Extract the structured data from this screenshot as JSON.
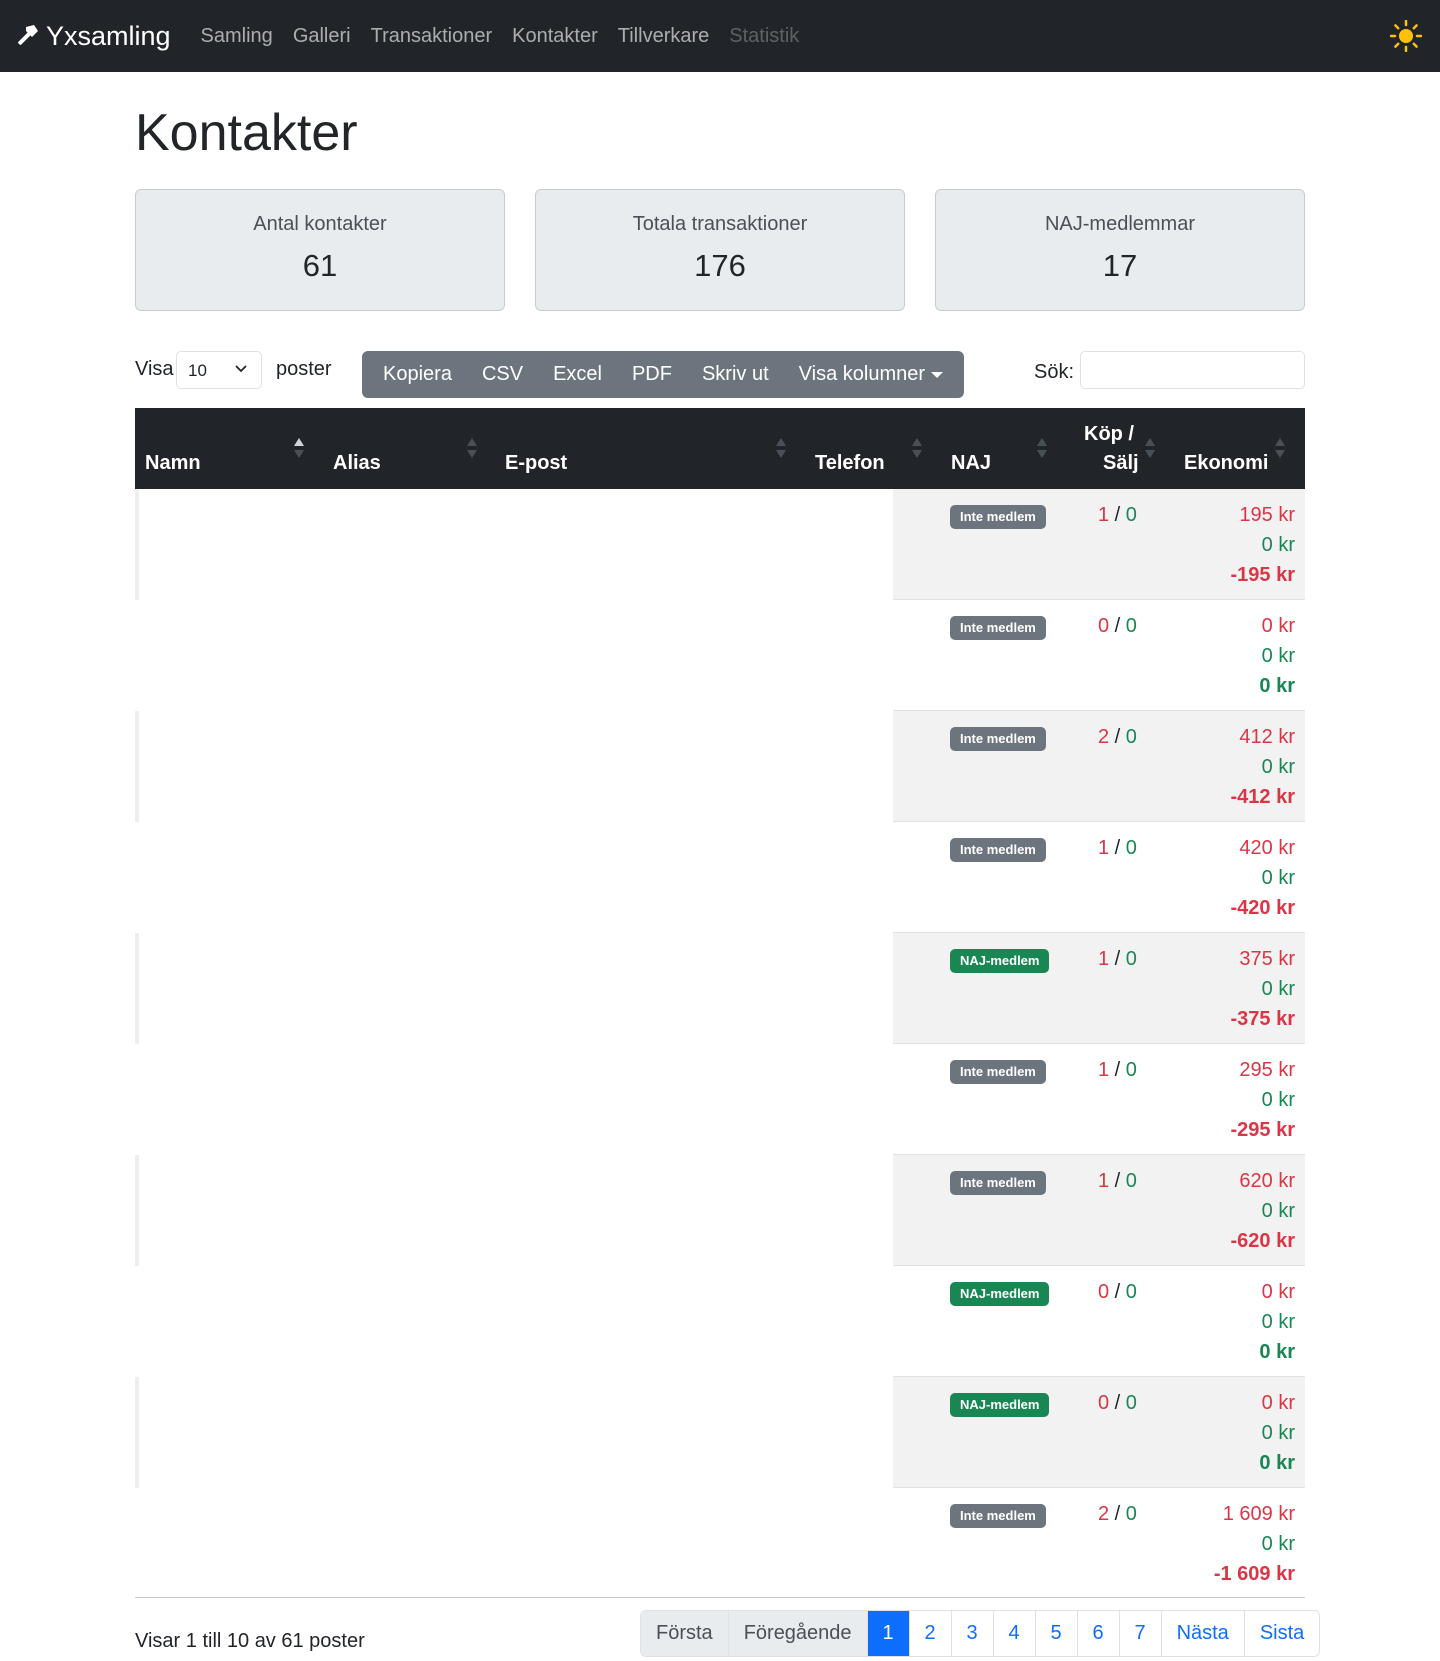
{
  "nav": {
    "brand": "Yxsamling",
    "links": [
      "Samling",
      "Galleri",
      "Transaktioner",
      "Kontakter",
      "Tillverkare",
      "Statistik"
    ]
  },
  "page_title": "Kontakter",
  "stats": [
    {
      "label": "Antal kontakter",
      "value": "61"
    },
    {
      "label": "Totala transaktioner",
      "value": "176"
    },
    {
      "label": "NAJ-medlemmar",
      "value": "17"
    }
  ],
  "controls": {
    "show_label": "Visa",
    "page_length": "10",
    "entries_label": "poster",
    "buttons": [
      "Kopiera",
      "CSV",
      "Excel",
      "PDF",
      "Skriv ut",
      "Visa kolumner"
    ],
    "search_label": "Sök:"
  },
  "table": {
    "headers": [
      "Namn",
      "Alias",
      "E-post",
      "Telefon",
      "NAJ",
      "Köp /",
      "Sälj",
      "Ekonomi"
    ],
    "rows": [
      {
        "naj": "Inte medlem",
        "buy": "1",
        "sell": "0",
        "spent": "195 kr",
        "earned": "0 kr",
        "net": "-195 kr"
      },
      {
        "naj": "Inte medlem",
        "buy": "0",
        "sell": "0",
        "spent": "0 kr",
        "earned": "0 kr",
        "net": "0 kr"
      },
      {
        "naj": "Inte medlem",
        "buy": "2",
        "sell": "0",
        "spent": "412 kr",
        "earned": "0 kr",
        "net": "-412 kr"
      },
      {
        "naj": "Inte medlem",
        "buy": "1",
        "sell": "0",
        "spent": "420 kr",
        "earned": "0 kr",
        "net": "-420 kr"
      },
      {
        "naj": "NAJ-medlem",
        "buy": "1",
        "sell": "0",
        "spent": "375 kr",
        "earned": "0 kr",
        "net": "-375 kr"
      },
      {
        "naj": "Inte medlem",
        "buy": "1",
        "sell": "0",
        "spent": "295 kr",
        "earned": "0 kr",
        "net": "-295 kr"
      },
      {
        "naj": "Inte medlem",
        "buy": "1",
        "sell": "0",
        "spent": "620 kr",
        "earned": "0 kr",
        "net": "-620 kr"
      },
      {
        "naj": "NAJ-medlem",
        "buy": "0",
        "sell": "0",
        "spent": "0 kr",
        "earned": "0 kr",
        "net": "0 kr"
      },
      {
        "naj": "NAJ-medlem",
        "buy": "0",
        "sell": "0",
        "spent": "0 kr",
        "earned": "0 kr",
        "net": "0 kr"
      },
      {
        "naj": "Inte medlem",
        "buy": "2",
        "sell": "0",
        "spent": "1 609 kr",
        "earned": "0 kr",
        "net": "-1 609 kr"
      }
    ]
  },
  "footer": {
    "info": "Visar 1 till 10 av 61 poster",
    "pagination": [
      "Första",
      "Föregående",
      "1",
      "2",
      "3",
      "4",
      "5",
      "6",
      "7",
      "Nästa",
      "Sista"
    ],
    "active_page": "1"
  },
  "colors": {
    "navbar": "#212529",
    "member_badge": "#198754",
    "non_member_badge": "#6c757d",
    "negative": "#dc3545",
    "positive": "#198754",
    "accent": "#0d6efd",
    "theme_icon": "#ffc107"
  },
  "icons": {
    "brand": "axe-icon",
    "theme_toggle": "sun-icon"
  }
}
